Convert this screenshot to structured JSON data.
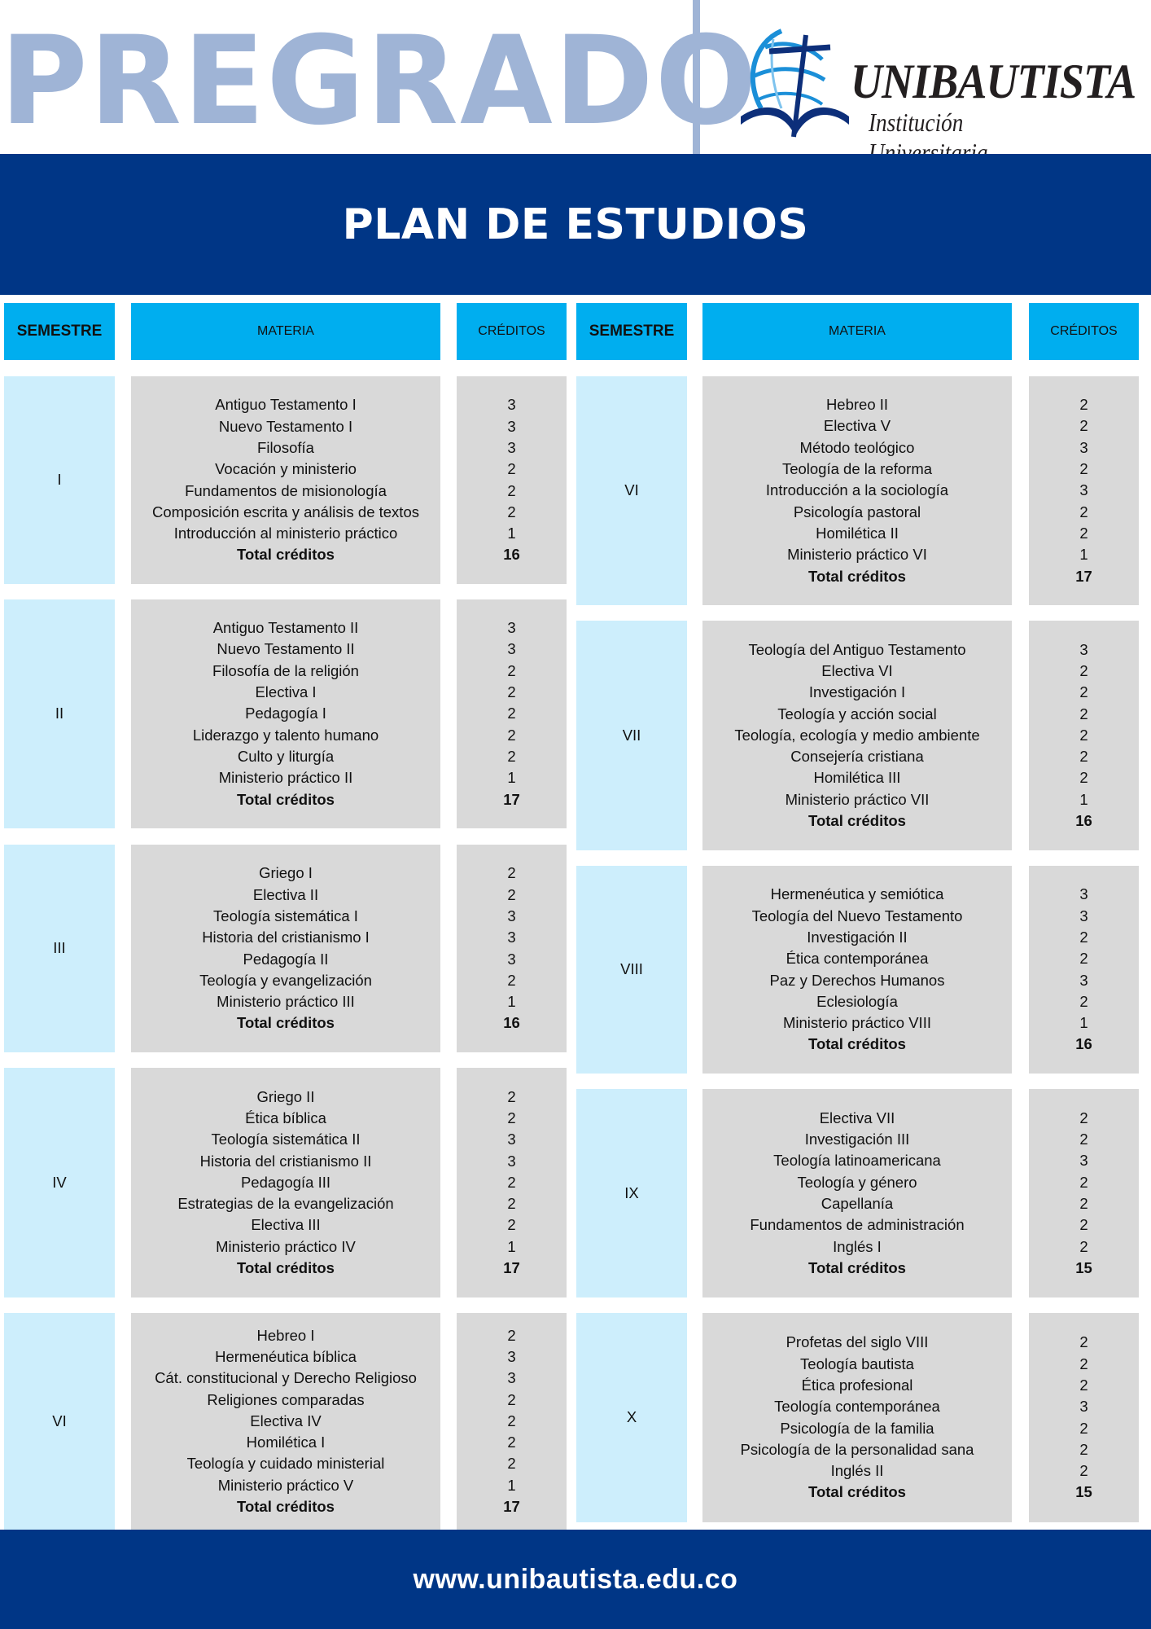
{
  "header": {
    "program": "PREGRADO",
    "logo": {
      "name": "UNIBAUTISTA",
      "subtitle": "Institución Universitaria"
    },
    "title": "PLAN DE ESTUDIOS"
  },
  "columns": {
    "semester": "SEMESTRE",
    "subject": "MATERIA",
    "credits": "CRÉDITOS"
  },
  "total_label": "Total créditos",
  "colors": {
    "dark_blue": "#003686",
    "header_cyan": "#00aeef",
    "semester_light_blue": "#cdeefc",
    "cell_gray": "#d9d9d9",
    "pregrado_blue": "#9fb4d6"
  },
  "left_semesters": [
    {
      "semester": "I",
      "subjects": [
        {
          "name": "Antiguo Testamento I",
          "credits": "3"
        },
        {
          "name": "Nuevo Testamento I",
          "credits": "3"
        },
        {
          "name": "Filosofía",
          "credits": "3"
        },
        {
          "name": "Vocación y ministerio",
          "credits": "2"
        },
        {
          "name": "Fundamentos de misionología",
          "credits": "2"
        },
        {
          "name": "Composición escrita y análisis de textos",
          "credits": "2"
        },
        {
          "name": "Introducción al ministerio práctico",
          "credits": "1"
        }
      ],
      "total": "16"
    },
    {
      "semester": "II",
      "subjects": [
        {
          "name": "Antiguo Testamento II",
          "credits": "3"
        },
        {
          "name": "Nuevo Testamento II",
          "credits": "3"
        },
        {
          "name": "Filosofía de la religión",
          "credits": "2"
        },
        {
          "name": "Electiva I",
          "credits": "2"
        },
        {
          "name": "Pedagogía I",
          "credits": "2"
        },
        {
          "name": "Liderazgo y talento humano",
          "credits": "2"
        },
        {
          "name": "Culto y liturgía",
          "credits": "2"
        },
        {
          "name": "Ministerio práctico II",
          "credits": "1"
        }
      ],
      "total": "17"
    },
    {
      "semester": "III",
      "subjects": [
        {
          "name": "Griego I",
          "credits": "2"
        },
        {
          "name": "Electiva II",
          "credits": "2"
        },
        {
          "name": "Teología sistemática I",
          "credits": "3"
        },
        {
          "name": "Historia del cristianismo I",
          "credits": "3"
        },
        {
          "name": "Pedagogía II",
          "credits": "3"
        },
        {
          "name": "Teología y evangelización",
          "credits": "2"
        },
        {
          "name": "Ministerio práctico III",
          "credits": "1"
        }
      ],
      "total": "16"
    },
    {
      "semester": "IV",
      "subjects": [
        {
          "name": "Griego II",
          "credits": "2"
        },
        {
          "name": "Ética bíblica",
          "credits": "2"
        },
        {
          "name": "Teología sistemática II",
          "credits": "3"
        },
        {
          "name": "Historia del cristianismo II",
          "credits": "3"
        },
        {
          "name": "Pedagogía III",
          "credits": "2"
        },
        {
          "name": "Estrategias de la evangelización",
          "credits": "2"
        },
        {
          "name": "Electiva III",
          "credits": "2"
        },
        {
          "name": "Ministerio práctico IV",
          "credits": "1"
        }
      ],
      "total": "17"
    },
    {
      "semester": "VI",
      "subjects": [
        {
          "name": "Hebreo I",
          "credits": "2"
        },
        {
          "name": "Hermenéutica bíblica",
          "credits": "3"
        },
        {
          "name": "Cát. constitucional y Derecho Religioso",
          "credits": "3"
        },
        {
          "name": "Religiones comparadas",
          "credits": "2"
        },
        {
          "name": "Electiva IV",
          "credits": "2"
        },
        {
          "name": "Homilética I",
          "credits": "2"
        },
        {
          "name": "Teología y cuidado ministerial",
          "credits": "2"
        },
        {
          "name": "Ministerio práctico V",
          "credits": "1"
        }
      ],
      "total": "17"
    }
  ],
  "right_semesters": [
    {
      "semester": "VI",
      "subjects": [
        {
          "name": "Hebreo II",
          "credits": "2"
        },
        {
          "name": "Electiva V",
          "credits": "2"
        },
        {
          "name": "Método teológico",
          "credits": "3"
        },
        {
          "name": "Teología de la reforma",
          "credits": "2"
        },
        {
          "name": "Introducción a la sociología",
          "credits": "3"
        },
        {
          "name": "Psicología pastoral",
          "credits": "2"
        },
        {
          "name": "Homilética II",
          "credits": "2"
        },
        {
          "name": "Ministerio práctico VI",
          "credits": "1"
        }
      ],
      "total": "17"
    },
    {
      "semester": "VII",
      "subjects": [
        {
          "name": "Teología del Antiguo Testamento",
          "credits": "3"
        },
        {
          "name": "Electiva VI",
          "credits": "2"
        },
        {
          "name": "Investigación I",
          "credits": "2"
        },
        {
          "name": "Teología y acción social",
          "credits": "2"
        },
        {
          "name": "Teología, ecología y medio ambiente",
          "credits": "2"
        },
        {
          "name": "Consejería cristiana",
          "credits": "2"
        },
        {
          "name": "Homilética III",
          "credits": "2"
        },
        {
          "name": "Ministerio práctico VII",
          "credits": "1"
        }
      ],
      "total": "16"
    },
    {
      "semester": "VIII",
      "subjects": [
        {
          "name": "Hermenéutica y semiótica",
          "credits": "3"
        },
        {
          "name": "Teología del Nuevo Testamento",
          "credits": "3"
        },
        {
          "name": "Investigación II",
          "credits": "2"
        },
        {
          "name": "Ética contemporánea",
          "credits": "2"
        },
        {
          "name": "Paz y Derechos Humanos",
          "credits": "3"
        },
        {
          "name": "Eclesiología",
          "credits": "2"
        },
        {
          "name": "Ministerio práctico VIII",
          "credits": "1"
        }
      ],
      "total": "16"
    },
    {
      "semester": "IX",
      "subjects": [
        {
          "name": "Electiva VII",
          "credits": "2"
        },
        {
          "name": "Investigación III",
          "credits": "2"
        },
        {
          "name": "Teología latinoamericana",
          "credits": "3"
        },
        {
          "name": "Teología y género",
          "credits": "2"
        },
        {
          "name": "Capellanía",
          "credits": "2"
        },
        {
          "name": "Fundamentos de administración",
          "credits": "2"
        },
        {
          "name": "Inglés I",
          "credits": "2"
        }
      ],
      "total": "15"
    },
    {
      "semester": "X",
      "subjects": [
        {
          "name": "Profetas del siglo VIII",
          "credits": "2"
        },
        {
          "name": "Teología bautista",
          "credits": "2"
        },
        {
          "name": "Ética profesional",
          "credits": "2"
        },
        {
          "name": "Teología contemporánea",
          "credits": "3"
        },
        {
          "name": "Psicología de la familia",
          "credits": "2"
        },
        {
          "name": "Psicología de la personalidad sana",
          "credits": "2"
        },
        {
          "name": "Inglés II",
          "credits": "2"
        }
      ],
      "total": "15"
    }
  ],
  "footer": {
    "website": "www.unibautista.edu.co"
  }
}
